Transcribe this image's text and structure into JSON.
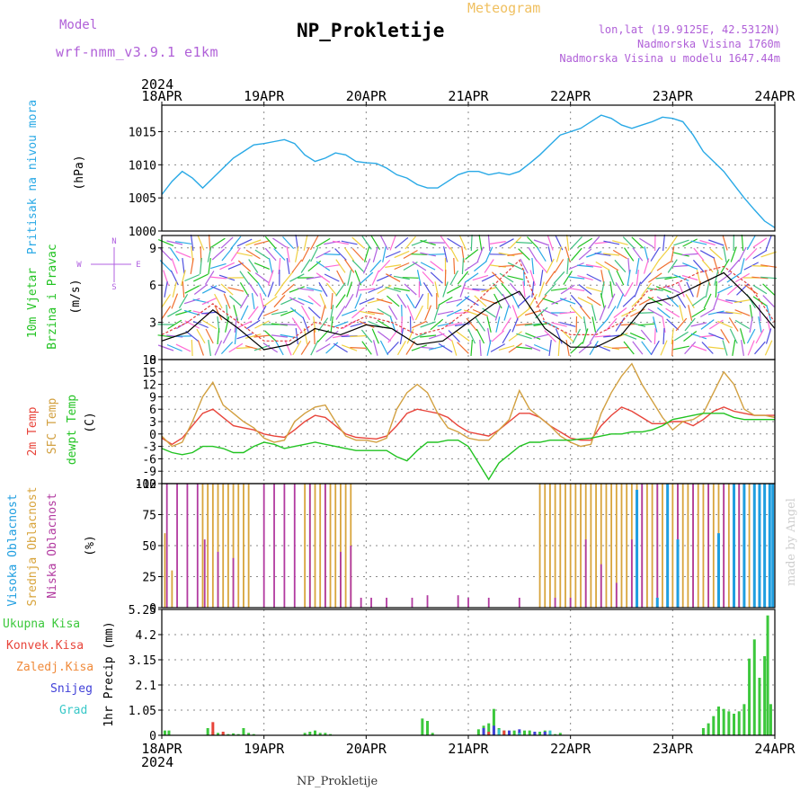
{
  "header": {
    "model_label": "Model",
    "model_name": "wrf-nmm_v3.9.1 e1km",
    "meteogram_label": "Meteogram",
    "station_title": "NP_Prokletije",
    "lonlat": "lon,lat (19.9125E, 42.5312N)",
    "altitude": "Nadmorska Visina 1760m",
    "model_altitude": "Nadmorska Visina u modelu 1647.44m"
  },
  "footer": {
    "station": "NP_Prokletije",
    "credit": "made by Angel"
  },
  "colors": {
    "pressure": "#29a9e6",
    "temp2m": "#e8443a",
    "sfc": "#d2a040",
    "dewpt": "#22c322",
    "high_cloud": "#1f9ee0",
    "mid_cloud": "#d8a43c",
    "low_cloud": "#b23aa0",
    "total_precip": "#3cc83c",
    "conv_precip": "#e8443a",
    "frz_precip": "#f08a3a",
    "snow": "#4040d8",
    "hail": "#38c8c8",
    "wind_green": "#22c322",
    "wind_purple": "#b060e0",
    "wind_cyan": "#29a9e6"
  },
  "chart_data": [
    {
      "type": "line",
      "panel": "pressure",
      "ylabel_left": "Pritisak na nivou mora",
      "ylabel_unit": "(hPa)",
      "ylim": [
        1000,
        1019
      ],
      "yticks": [
        "1000",
        "1005",
        "1010",
        "1015"
      ],
      "x_start_label": "2024",
      "x_dates": [
        "18APR",
        "19APR",
        "20APR",
        "21APR",
        "22APR",
        "23APR",
        "24APR"
      ],
      "x_days": [
        0,
        0.1,
        0.2,
        0.3,
        0.4,
        0.5,
        0.6,
        0.7,
        0.8,
        0.9,
        1.0,
        1.1,
        1.2,
        1.3,
        1.4,
        1.5,
        1.6,
        1.7,
        1.8,
        1.9,
        2.0,
        2.1,
        2.2,
        2.3,
        2.4,
        2.5,
        2.6,
        2.7,
        2.8,
        2.9,
        3.0,
        3.1,
        3.2,
        3.3,
        3.4,
        3.5,
        3.6,
        3.7,
        3.8,
        3.9,
        4.0,
        4.1,
        4.2,
        4.3,
        4.4,
        4.5,
        4.6,
        4.7,
        4.8,
        4.9,
        5.0,
        5.1,
        5.2,
        5.3,
        5.4,
        5.5,
        5.6,
        5.7,
        5.8,
        5.9,
        6.0
      ],
      "series": [
        {
          "values": [
            1005.5,
            1007.5,
            1009,
            1008,
            1006.5,
            1008,
            1009.5,
            1011,
            1012,
            1013,
            1013.2,
            1013.5,
            1013.8,
            1013.2,
            1011.5,
            1010.5,
            1011,
            1011.8,
            1011.5,
            1010.5,
            1010.3,
            1010.2,
            1009.5,
            1008.5,
            1008,
            1007,
            1006.5,
            1006.5,
            1007.5,
            1008.5,
            1009,
            1009,
            1008.5,
            1008.8,
            1008.5,
            1009,
            1010.2,
            1011.5,
            1013,
            1014.5,
            1015,
            1015.5,
            1016.5,
            1017.5,
            1017,
            1016,
            1015.5,
            1016,
            1016.5,
            1017.2,
            1017,
            1016.5,
            1014.5,
            1012,
            1010.5,
            1009,
            1007,
            1005,
            1003.2,
            1001.5,
            1000.5
          ]
        }
      ]
    },
    {
      "type": "line",
      "panel": "wind",
      "ylabel_left_1": "10m Vjetar",
      "ylabel_left_2": "Brzina i Pravac",
      "ylabel_unit": "(m/s)",
      "compass": [
        "N",
        "S",
        "W",
        "E"
      ],
      "ylim": [
        0,
        10
      ],
      "yticks": [
        "0",
        "3",
        "6",
        "9"
      ],
      "x_days": [
        0,
        0.25,
        0.5,
        0.75,
        1.0,
        1.25,
        1.5,
        1.75,
        2.0,
        2.25,
        2.5,
        2.75,
        3.0,
        3.25,
        3.5,
        3.75,
        4.0,
        4.25,
        4.5,
        4.75,
        5.0,
        5.25,
        5.5,
        5.75,
        6.0
      ],
      "series": [
        {
          "name": "speed",
          "values": [
            1.5,
            2.2,
            4.0,
            2.5,
            0.8,
            1.2,
            2.5,
            2.0,
            2.8,
            2.5,
            1.2,
            1.5,
            3.0,
            4.5,
            5.5,
            2.5,
            1.0,
            1.0,
            2.0,
            4.5,
            5.0,
            6.0,
            7.0,
            5.0,
            2.5
          ]
        },
        {
          "name": "gust",
          "values": [
            2.0,
            3.0,
            4.5,
            3.0,
            1.5,
            1.5,
            3.0,
            2.5,
            3.5,
            3.0,
            2.0,
            2.5,
            4.0,
            6.0,
            8.0,
            3.0,
            2.0,
            2.0,
            3.0,
            5.5,
            6.0,
            7.0,
            7.5,
            6.0,
            3.0
          ]
        }
      ]
    },
    {
      "type": "line",
      "panel": "temperature",
      "ylabel_left_1": "2m Temp",
      "ylabel_left_2": "SFC Temp",
      "ylabel_left_3": "dewpt Temp",
      "ylabel_unit": "(C)",
      "ylim": [
        -12,
        18
      ],
      "yticks": [
        "-12",
        "-9",
        "-6",
        "-3",
        "0",
        "3",
        "6",
        "9",
        "12",
        "15",
        "18"
      ],
      "x_days": [
        0,
        0.1,
        0.2,
        0.3,
        0.4,
        0.5,
        0.6,
        0.7,
        0.8,
        0.9,
        1.0,
        1.1,
        1.2,
        1.3,
        1.4,
        1.5,
        1.6,
        1.7,
        1.8,
        1.9,
        2.0,
        2.1,
        2.2,
        2.3,
        2.4,
        2.5,
        2.6,
        2.7,
        2.8,
        2.9,
        3.0,
        3.1,
        3.2,
        3.3,
        3.4,
        3.5,
        3.6,
        3.7,
        3.8,
        3.9,
        4.0,
        4.1,
        4.2,
        4.3,
        4.4,
        4.5,
        4.6,
        4.7,
        4.8,
        4.9,
        5.0,
        5.1,
        5.2,
        5.3,
        5.4,
        5.5,
        5.6,
        5.7,
        5.8,
        5.9,
        6.0
      ],
      "series": [
        {
          "name": "2m Temp",
          "values": [
            -1,
            -2.5,
            -1,
            2,
            5,
            6,
            4,
            2,
            1.5,
            1,
            0,
            -0.5,
            -0.8,
            1,
            3,
            4.5,
            4,
            2,
            0,
            -0.8,
            -1,
            -1.2,
            -0.5,
            2,
            5,
            6,
            5.5,
            5,
            4,
            2,
            0.5,
            0,
            -0.5,
            1,
            3,
            5,
            5,
            4,
            2,
            0.5,
            -1,
            -1.5,
            -1.5,
            2,
            4.5,
            6.5,
            5.5,
            4,
            2.5,
            2.5,
            3,
            3,
            2,
            3.5,
            5.5,
            6.5,
            5.5,
            5,
            4.5,
            4.5,
            4.5
          ]
        },
        {
          "name": "SFC Temp",
          "values": [
            -0.5,
            -3,
            -2,
            3,
            9,
            12.5,
            7,
            5,
            3,
            1.5,
            -1,
            -2,
            -1.5,
            3,
            5,
            6.5,
            7,
            3,
            -0.5,
            -1.5,
            -1.5,
            -2,
            -1,
            6,
            10,
            12,
            10,
            5,
            1.5,
            0.5,
            -1,
            -1.5,
            -1.5,
            1,
            3.5,
            10.5,
            6,
            4,
            2,
            -0.5,
            -2,
            -3,
            -2.5,
            5,
            10,
            14,
            17,
            12,
            8,
            4,
            1,
            3,
            3.5,
            5,
            10,
            15,
            12,
            6,
            4.5,
            4.5,
            4
          ]
        },
        {
          "name": "dewpt Temp",
          "values": [
            -3.5,
            -4.5,
            -5,
            -4.5,
            -3,
            -3,
            -3.5,
            -4.5,
            -4.5,
            -3,
            -2,
            -2.5,
            -3.5,
            -3,
            -2.5,
            -2,
            -2.5,
            -3,
            -3.5,
            -4,
            -4,
            -4,
            -4,
            -5.5,
            -6.5,
            -4,
            -2,
            -2,
            -1.5,
            -1.5,
            -3,
            -7,
            -11,
            -7,
            -5,
            -3,
            -2,
            -2,
            -1.5,
            -1.5,
            -1.5,
            -1.2,
            -1.0,
            -0.5,
            0,
            0,
            0.5,
            0.5,
            1,
            2,
            3.5,
            4,
            4.5,
            5,
            5,
            5,
            4,
            3.5,
            3.5,
            3.5,
            3.5
          ]
        }
      ]
    },
    {
      "type": "bar",
      "panel": "cloud",
      "ylabel_left_1": "Visoka Oblacnost",
      "ylabel_left_2": "Srednja Oblacnost",
      "ylabel_left_3": "Niska Oblacnost",
      "ylabel_unit": "(%)",
      "ylim": [
        0,
        100
      ],
      "yticks": [
        "0",
        "25",
        "50",
        "75",
        "100"
      ],
      "series": [
        {
          "name": "Srednja",
          "x": [
            0.03,
            0.1,
            0.4,
            0.45,
            0.5,
            0.55,
            0.6,
            0.65,
            0.7,
            0.75,
            0.8,
            0.85,
            1.4,
            1.45,
            1.5,
            1.55,
            1.6,
            1.65,
            1.7,
            1.75,
            1.8,
            1.85,
            3.7,
            3.75,
            3.8,
            3.85,
            3.9,
            3.95,
            4.0,
            4.05,
            4.1,
            4.15,
            4.2,
            4.25,
            4.3,
            4.35,
            4.4,
            4.45,
            4.5,
            4.55,
            4.6,
            4.65,
            4.7,
            4.75,
            4.8,
            4.85,
            4.9,
            4.95,
            5.0,
            5.05,
            5.1,
            5.15,
            5.2,
            5.25,
            5.3,
            5.35,
            5.4,
            5.45,
            5.5,
            5.55,
            5.6,
            5.65,
            5.7,
            5.75,
            5.8,
            5.85,
            5.9,
            5.95
          ],
          "values": [
            60,
            30,
            100,
            100,
            100,
            100,
            100,
            100,
            100,
            100,
            100,
            100,
            100,
            100,
            100,
            100,
            100,
            100,
            100,
            100,
            100,
            100,
            100,
            100,
            100,
            100,
            100,
            100,
            100,
            100,
            100,
            100,
            100,
            100,
            100,
            100,
            100,
            100,
            100,
            100,
            100,
            100,
            100,
            100,
            100,
            100,
            100,
            100,
            100,
            100,
            100,
            100,
            100,
            100,
            100,
            100,
            100,
            100,
            100,
            100,
            100,
            100,
            100,
            100,
            100,
            100,
            100,
            100
          ]
        },
        {
          "name": "Niska",
          "x": [
            0.05,
            0.15,
            0.25,
            0.35,
            0.42,
            0.55,
            0.7,
            1.0,
            1.1,
            1.2,
            1.3,
            1.45,
            1.6,
            1.75,
            1.85,
            1.95,
            2.05,
            2.2,
            2.45,
            2.6,
            2.9,
            3.0,
            3.2,
            3.5,
            3.85,
            4.0,
            4.15,
            4.3,
            4.45,
            4.6,
            4.7,
            4.85,
            4.95,
            5.05,
            5.2,
            5.35,
            5.5,
            5.65,
            5.8,
            5.9
          ],
          "values": [
            100,
            100,
            100,
            100,
            55,
            45,
            40,
            100,
            100,
            100,
            100,
            100,
            100,
            45,
            50,
            8,
            8,
            8,
            8,
            10,
            10,
            8,
            8,
            8,
            8,
            8,
            55,
            35,
            20,
            55,
            100,
            100,
            45,
            100,
            100,
            100,
            100,
            100,
            100,
            100
          ]
        },
        {
          "name": "Visoka",
          "x": [
            4.65,
            4.85,
            4.95,
            5.05,
            5.45,
            5.6,
            5.7,
            5.8,
            5.85,
            5.9,
            5.95,
            5.98
          ],
          "values": [
            95,
            8,
            100,
            55,
            60,
            100,
            100,
            100,
            100,
            100,
            100,
            100
          ]
        }
      ]
    },
    {
      "type": "bar",
      "panel": "precipitation",
      "legend": [
        "Ukupna Kisa",
        "Konvek.Kisa",
        "Zaledj.Kisa",
        "Snijeg",
        "Grad"
      ],
      "ylabel_unit": "1hr Precip (mm)",
      "ylim": [
        0,
        5.25
      ],
      "yticks": [
        "0",
        "1.05",
        "2.1",
        "3.15",
        "4.2",
        "5.25"
      ],
      "x_end_label": "2024",
      "series": [
        {
          "name": "Ukupna Kisa",
          "x": [
            0.03,
            0.07,
            0.45,
            0.5,
            0.55,
            0.6,
            0.65,
            0.7,
            0.75,
            0.8,
            0.85,
            0.9,
            1.4,
            1.45,
            1.5,
            1.55,
            1.6,
            1.65,
            2.55,
            2.6,
            2.65,
            3.1,
            3.15,
            3.2,
            3.25,
            3.3,
            3.35,
            3.4,
            3.45,
            3.5,
            3.55,
            3.6,
            3.65,
            3.7,
            3.75,
            3.8,
            3.85,
            3.9,
            5.3,
            5.35,
            5.4,
            5.45,
            5.5,
            5.55,
            5.6,
            5.65,
            5.7,
            5.75,
            5.8,
            5.85,
            5.9,
            5.93,
            5.96
          ],
          "values": [
            0.2,
            0.2,
            0.3,
            0.15,
            0.1,
            0.1,
            0.05,
            0.08,
            0.05,
            0.3,
            0.1,
            0.05,
            0.1,
            0.15,
            0.2,
            0.1,
            0.1,
            0.05,
            0.7,
            0.6,
            0.1,
            0.25,
            0.4,
            0.5,
            1.1,
            0.3,
            0.2,
            0.1,
            0.2,
            0.15,
            0.2,
            0.2,
            0.1,
            0.15,
            0.2,
            0.1,
            0.05,
            0.1,
            0.3,
            0.5,
            0.8,
            1.2,
            1.1,
            1.0,
            0.9,
            1.0,
            1.3,
            3.2,
            4.0,
            2.4,
            3.3,
            5.0,
            1.3
          ]
        },
        {
          "name": "Konvek.Kisa",
          "x": [
            0.5,
            0.6,
            3.2,
            3.35
          ],
          "values": [
            0.55,
            0.15,
            0.15,
            0.2
          ]
        },
        {
          "name": "Snijeg",
          "x": [
            3.15,
            3.25,
            3.4,
            3.5,
            3.65,
            3.75
          ],
          "values": [
            0.3,
            0.4,
            0.2,
            0.25,
            0.15,
            0.15
          ]
        },
        {
          "name": "Grad",
          "x": [
            3.3,
            3.5,
            3.8
          ],
          "values": [
            0.25,
            0.1,
            0.2
          ]
        }
      ]
    }
  ]
}
